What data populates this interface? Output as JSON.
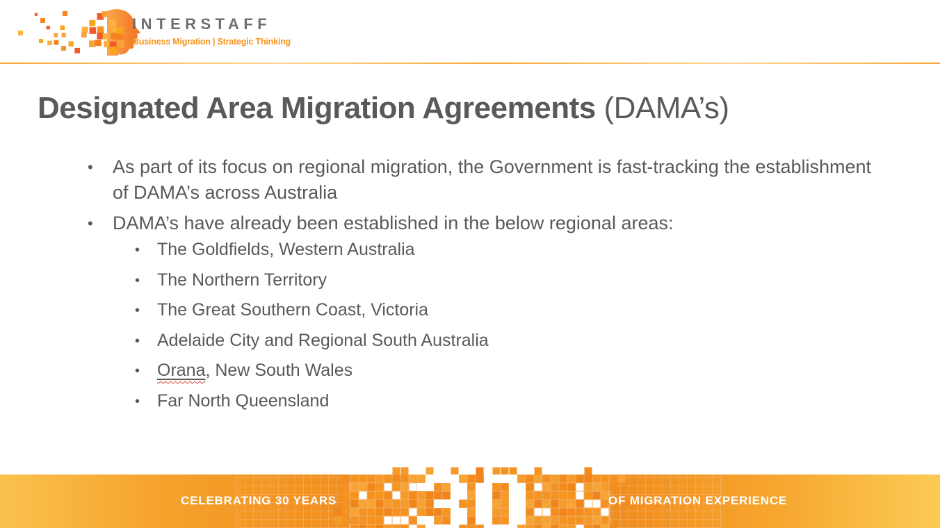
{
  "logo": {
    "brand": "INTERSTAFF",
    "tagline": "Business Migration | Strategic Thinking"
  },
  "title": {
    "bold": "Designated Area Migration Agreements",
    "regular": "(DAMA’s)"
  },
  "content": {
    "bullets": [
      "As part of its focus on regional migration, the Government is fast-tracking the establishment of DAMA’s across Australia",
      "DAMA’s have already been established in the below regional areas:"
    ],
    "sub_bullets": [
      {
        "flagged": "",
        "text": "The Goldfields, Western Australia"
      },
      {
        "flagged": "",
        "text": "The Northern Territory"
      },
      {
        "flagged": "",
        "text": "The Great Southern Coast, Victoria"
      },
      {
        "flagged": "",
        "text": "Adelaide City and Regional South Australia"
      },
      {
        "flagged": "Orana",
        "text": ", New South Wales"
      },
      {
        "flagged": "",
        "text": "Far North Queensland"
      }
    ]
  },
  "footer": {
    "left_text": "CELEBRATING 30 YEARS",
    "right_text": "OF MIGRATION EXPERIENCE",
    "mosaic_number": "30"
  },
  "colors": {
    "brand_orange": "#f7941e",
    "deep_orange": "#f0891e",
    "light_orange": "#fbc14e",
    "text_gray": "#595959",
    "brand_gray": "#6d6e71",
    "spellcheck_red": "#e03c31"
  }
}
